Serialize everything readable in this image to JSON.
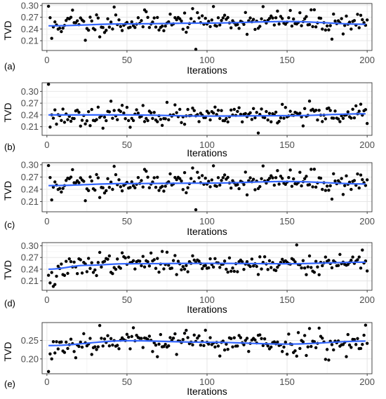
{
  "chart_data": [
    {
      "type": "scatter",
      "panel_label": "(a)",
      "xlabel": "Iterations",
      "ylabel": "TVD",
      "xlim": [
        -3,
        203
      ],
      "ylim": [
        0.185,
        0.305
      ],
      "x_ticks": [
        0,
        50,
        100,
        150,
        200
      ],
      "y_ticks": [
        0.21,
        0.24,
        0.27,
        0.3
      ],
      "y_tick_labels": [
        "0.21",
        "0.24",
        "0.27",
        "0.30"
      ],
      "grid": true,
      "points": {
        "n": 200,
        "x_start": 1,
        "x_step": 1,
        "base": [
          0.251,
          0.256,
          0.26,
          0.26,
          0.257
        ],
        "spread": 0.019,
        "outliers": [
          [
            1,
            0.298
          ],
          [
            3,
            0.216
          ],
          [
            16,
            0.288
          ],
          [
            20,
            0.251
          ],
          [
            24,
            0.211
          ],
          [
            42,
            0.296
          ],
          [
            93,
            0.188
          ],
          [
            135,
            0.297
          ],
          [
            178,
            0.214
          ]
        ],
        "seed": 11
      },
      "smooth": {
        "type": "loess",
        "x": [
          1,
          50,
          100,
          150,
          200
        ],
        "y": [
          0.248,
          0.253,
          0.255,
          0.259,
          0.252
        ]
      },
      "colors": {
        "points": "#000000",
        "smooth": "#3366FF"
      }
    },
    {
      "type": "scatter",
      "panel_label": "(b)",
      "xlabel": "Iterations",
      "ylabel": "TVD",
      "xlim": [
        -3,
        203
      ],
      "ylim": [
        0.188,
        0.322
      ],
      "x_ticks": [
        0,
        50,
        100,
        150,
        200
      ],
      "y_ticks": [
        0.21,
        0.24,
        0.27,
        0.3
      ],
      "y_tick_labels": [
        "0.21",
        "0.24",
        "0.27",
        "0.30"
      ],
      "grid": true,
      "points": {
        "n": 200,
        "x_start": 1,
        "x_step": 1,
        "base": [
          0.236,
          0.238,
          0.236,
          0.238,
          0.244
        ],
        "spread": 0.016,
        "outliers": [
          [
            1,
            0.318
          ],
          [
            2,
            0.209
          ],
          [
            40,
            0.275
          ],
          [
            75,
            0.272
          ],
          [
            132,
            0.194
          ],
          [
            160,
            0.212
          ]
        ],
        "seed": 23
      },
      "smooth": {
        "type": "loess",
        "x": [
          1,
          50,
          100,
          150,
          200
        ],
        "y": [
          0.24,
          0.24,
          0.237,
          0.238,
          0.243
        ]
      },
      "colors": {
        "points": "#000000",
        "smooth": "#3366FF"
      }
    },
    {
      "type": "scatter",
      "panel_label": "(c)",
      "xlabel": "Iterations",
      "ylabel": "TVD",
      "xlim": [
        -3,
        203
      ],
      "ylim": [
        0.185,
        0.305
      ],
      "x_ticks": [
        0,
        50,
        100,
        150,
        200
      ],
      "y_ticks": [
        0.21,
        0.24,
        0.27,
        0.3
      ],
      "y_tick_labels": [
        "0.21",
        "0.24",
        "0.27",
        "0.30"
      ],
      "grid": true,
      "points": {
        "n": 200,
        "x_start": 1,
        "x_step": 1,
        "base": [
          0.251,
          0.256,
          0.26,
          0.26,
          0.257
        ],
        "spread": 0.019,
        "outliers": [
          [
            1,
            0.298
          ],
          [
            3,
            0.214
          ],
          [
            16,
            0.288
          ],
          [
            24,
            0.212
          ],
          [
            42,
            0.296
          ],
          [
            93,
            0.19
          ],
          [
            135,
            0.297
          ],
          [
            178,
            0.216
          ]
        ],
        "seed": 11
      },
      "smooth": {
        "type": "loess",
        "x": [
          1,
          50,
          100,
          150,
          200
        ],
        "y": [
          0.249,
          0.254,
          0.255,
          0.259,
          0.253
        ]
      },
      "colors": {
        "points": "#000000",
        "smooth": "#3366FF"
      }
    },
    {
      "type": "scatter",
      "panel_label": "(d)",
      "xlabel": "Iterations",
      "ylabel": "TVD",
      "xlim": [
        -3,
        203
      ],
      "ylim": [
        0.186,
        0.308
      ],
      "x_ticks": [
        0,
        50,
        100,
        150,
        200
      ],
      "y_ticks": [
        0.21,
        0.24,
        0.27,
        0.3
      ],
      "y_tick_labels": [
        "0.21",
        "0.24",
        "0.27",
        "0.30"
      ],
      "grid": true,
      "points": {
        "n": 200,
        "x_start": 1,
        "x_step": 1,
        "base": [
          0.238,
          0.257,
          0.254,
          0.253,
          0.258
        ],
        "spread": 0.017,
        "outliers": [
          [
            2,
            0.205
          ],
          [
            4,
            0.196
          ],
          [
            5,
            0.201
          ],
          [
            6,
            0.222
          ],
          [
            33,
            0.283
          ],
          [
            156,
            0.302
          ],
          [
            162,
            0.226
          ],
          [
            197,
            0.289
          ]
        ],
        "seed": 37
      },
      "smooth": {
        "type": "loess",
        "x": [
          1,
          25,
          50,
          100,
          150,
          200
        ],
        "y": [
          0.24,
          0.25,
          0.254,
          0.255,
          0.254,
          0.258
        ]
      },
      "colors": {
        "points": "#000000",
        "smooth": "#3366FF"
      }
    },
    {
      "type": "scatter",
      "panel_label": "(e)",
      "xlabel": "Iterations",
      "ylabel": "TVD",
      "xlim": [
        -3,
        203
      ],
      "ylim": [
        0.16,
        0.298
      ],
      "x_ticks": [
        0,
        50,
        100,
        150,
        200
      ],
      "y_ticks": [
        0.2,
        0.25
      ],
      "y_tick_labels": [
        "0.20",
        "0.25"
      ],
      "grid": true,
      "points": {
        "n": 200,
        "x_start": 1,
        "x_step": 1,
        "base": [
          0.236,
          0.25,
          0.245,
          0.24,
          0.248
        ],
        "spread": 0.022,
        "outliers": [
          [
            1,
            0.166
          ],
          [
            3,
            0.2
          ],
          [
            5,
            0.216
          ],
          [
            33,
            0.29
          ],
          [
            170,
            0.283
          ],
          [
            176,
            0.197
          ],
          [
            199,
            0.291
          ]
        ],
        "seed": 53
      },
      "smooth": {
        "type": "loess",
        "x": [
          1,
          50,
          100,
          150,
          200
        ],
        "y": [
          0.236,
          0.249,
          0.245,
          0.24,
          0.248
        ]
      },
      "colors": {
        "points": "#000000",
        "smooth": "#3366FF"
      }
    }
  ]
}
